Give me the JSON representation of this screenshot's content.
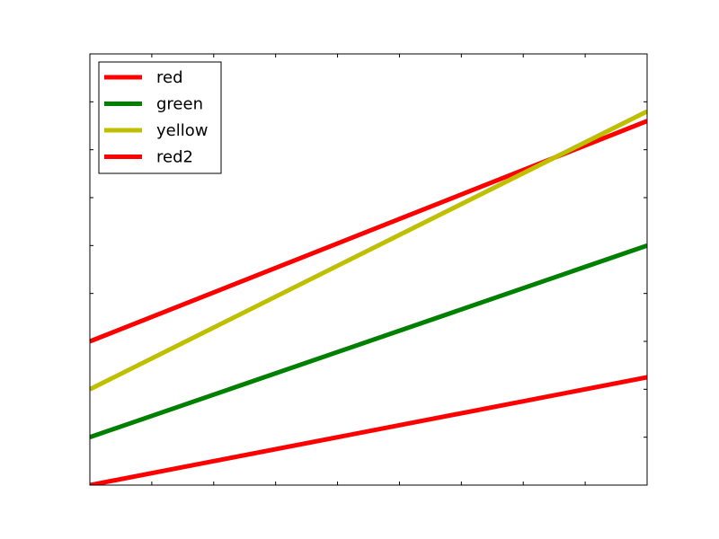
{
  "chart_data": {
    "type": "line",
    "x": [
      0,
      9
    ],
    "xlim": [
      0,
      9
    ],
    "ylim": [
      0,
      9
    ],
    "grid": false,
    "legend": "top-left",
    "ticks": {
      "x": [
        0,
        1,
        2,
        3,
        4,
        5,
        6,
        7,
        8,
        9
      ],
      "y": [
        0,
        1,
        2,
        3,
        4,
        5,
        6,
        7,
        8,
        9
      ]
    },
    "series": [
      {
        "name": "red",
        "color": "#ff0000",
        "values": [
          3.0,
          7.6
        ]
      },
      {
        "name": "green",
        "color": "#008000",
        "values": [
          1.0,
          5.0
        ]
      },
      {
        "name": "yellow",
        "color": "#bfbf00",
        "values": [
          2.0,
          7.8
        ]
      },
      {
        "name": "red2",
        "color": "#ff0000",
        "values": [
          0.0,
          2.25
        ]
      }
    ]
  }
}
